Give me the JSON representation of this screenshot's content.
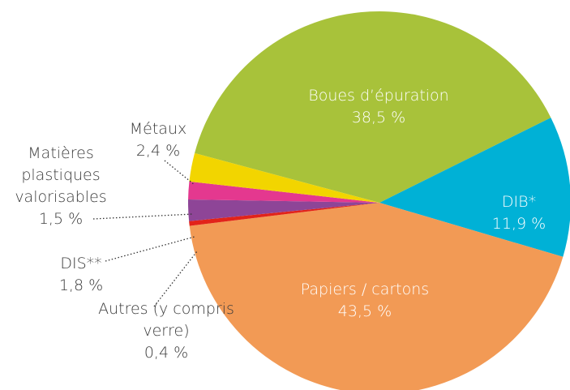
{
  "chart_data": {
    "type": "pie",
    "categories": [
      "Boues d’épuration",
      "DIB*",
      "Papiers / cartons",
      "Autres (y compris verre)",
      "DIS**",
      "Matières plastiques valorisables",
      "Métaux"
    ],
    "values": [
      38.5,
      11.9,
      43.5,
      0.4,
      1.8,
      1.5,
      2.4
    ],
    "value_labels": [
      "38,5 %",
      "11,9 %",
      "43,5 %",
      "0,4 %",
      "1,8 %",
      "1,5 %",
      "2,4 %"
    ],
    "colors": [
      "#a8c23a",
      "#00b1d6",
      "#f29a55",
      "#e2231a",
      "#8e4597",
      "#e4388f",
      "#f2d500"
    ]
  }
}
